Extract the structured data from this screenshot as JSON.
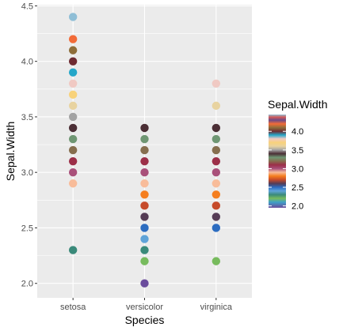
{
  "chart_data": {
    "type": "scatter",
    "title": "",
    "xlabel": "Species",
    "ylabel": "Sepal.Width",
    "categories": [
      "setosa",
      "versicolor",
      "virginica"
    ],
    "ylim": [
      1.87,
      4.51
    ],
    "yticks": [
      2.0,
      2.5,
      3.0,
      3.5,
      4.0,
      4.5
    ],
    "ytick_labels": [
      "2.0",
      "2.5",
      "3.0",
      "3.5",
      "4.0",
      "4.5"
    ],
    "grid": true,
    "panel_background": "#EBEBEB",
    "grid_color": "#FFFFFF",
    "legend": {
      "title": "Sepal.Width",
      "placement": "right",
      "labels": [
        "4.0",
        "3.5",
        "3.0",
        "2.5",
        "2.0"
      ],
      "values": [
        4.0,
        3.5,
        3.0,
        2.5,
        2.0
      ]
    },
    "series": [
      {
        "category": "setosa",
        "points": [
          {
            "y": 4.4,
            "color": "#8FBED6"
          },
          {
            "y": 4.2,
            "color": "#F26B38"
          },
          {
            "y": 4.1,
            "color": "#8E6E3A"
          },
          {
            "y": 4.0,
            "color": "#6E2B32"
          },
          {
            "y": 3.9,
            "color": "#25A7C9"
          },
          {
            "y": 3.8,
            "color": "#F0C9C3"
          },
          {
            "y": 3.7,
            "color": "#F8D27A"
          },
          {
            "y": 3.6,
            "color": "#E8D3A0"
          },
          {
            "y": 3.5,
            "color": "#A3A3A3"
          },
          {
            "y": 3.4,
            "color": "#4B2E35"
          },
          {
            "y": 3.3,
            "color": "#6F9673"
          },
          {
            "y": 3.2,
            "color": "#866E4E"
          },
          {
            "y": 3.1,
            "color": "#9C2F48"
          },
          {
            "y": 3.0,
            "color": "#A9507A"
          },
          {
            "y": 2.9,
            "color": "#F8BC9A"
          },
          {
            "y": 2.3,
            "color": "#3A8A7A"
          }
        ]
      },
      {
        "category": "versicolor",
        "points": [
          {
            "y": 3.4,
            "color": "#4B2E35"
          },
          {
            "y": 3.3,
            "color": "#6F9673"
          },
          {
            "y": 3.2,
            "color": "#866E4E"
          },
          {
            "y": 3.1,
            "color": "#9C2F48"
          },
          {
            "y": 3.0,
            "color": "#A9507A"
          },
          {
            "y": 2.9,
            "color": "#F8BC9A"
          },
          {
            "y": 2.8,
            "color": "#F57E1F"
          },
          {
            "y": 2.7,
            "color": "#C64A2A"
          },
          {
            "y": 2.6,
            "color": "#553C55"
          },
          {
            "y": 2.5,
            "color": "#2C6CC0"
          },
          {
            "y": 2.4,
            "color": "#5FA3D8"
          },
          {
            "y": 2.3,
            "color": "#3A8A7A"
          },
          {
            "y": 2.2,
            "color": "#77BB5D"
          },
          {
            "y": 2.0,
            "color": "#6A4C9C"
          }
        ]
      },
      {
        "category": "virginica",
        "points": [
          {
            "y": 3.8,
            "color": "#F0C9C3"
          },
          {
            "y": 3.6,
            "color": "#E8D3A0"
          },
          {
            "y": 3.4,
            "color": "#4B2E35"
          },
          {
            "y": 3.3,
            "color": "#6F9673"
          },
          {
            "y": 3.2,
            "color": "#866E4E"
          },
          {
            "y": 3.1,
            "color": "#9C2F48"
          },
          {
            "y": 3.0,
            "color": "#A9507A"
          },
          {
            "y": 2.9,
            "color": "#F8BC9A"
          },
          {
            "y": 2.8,
            "color": "#F57E1F"
          },
          {
            "y": 2.7,
            "color": "#C64A2A"
          },
          {
            "y": 2.6,
            "color": "#553C55"
          },
          {
            "y": 2.5,
            "color": "#2C6CC0"
          },
          {
            "y": 2.2,
            "color": "#77BB5D"
          }
        ]
      }
    ],
    "colorbar": {
      "min": 1.95,
      "max": 4.45,
      "stops": [
        {
          "v": 4.45,
          "color": "#8FBED6"
        },
        {
          "v": 4.38,
          "color": "#D35A5A"
        },
        {
          "v": 4.3,
          "color": "#6B4A87"
        },
        {
          "v": 4.2,
          "color": "#F26B38"
        },
        {
          "v": 4.1,
          "color": "#8E6E3A"
        },
        {
          "v": 4.0,
          "color": "#6E2B32"
        },
        {
          "v": 3.9,
          "color": "#25A7C9"
        },
        {
          "v": 3.8,
          "color": "#F0C9C3"
        },
        {
          "v": 3.7,
          "color": "#F8D27A"
        },
        {
          "v": 3.6,
          "color": "#E8D3A0"
        },
        {
          "v": 3.5,
          "color": "#A3A3A3"
        },
        {
          "v": 3.4,
          "color": "#4B2E35"
        },
        {
          "v": 3.3,
          "color": "#6F9673"
        },
        {
          "v": 3.2,
          "color": "#866E4E"
        },
        {
          "v": 3.1,
          "color": "#9C2F48"
        },
        {
          "v": 3.0,
          "color": "#A9507A"
        },
        {
          "v": 2.9,
          "color": "#F8BC9A"
        },
        {
          "v": 2.8,
          "color": "#F57E1F"
        },
        {
          "v": 2.7,
          "color": "#C64A2A"
        },
        {
          "v": 2.6,
          "color": "#553C55"
        },
        {
          "v": 2.5,
          "color": "#2C6CC0"
        },
        {
          "v": 2.4,
          "color": "#5FA3D8"
        },
        {
          "v": 2.3,
          "color": "#3A8A7A"
        },
        {
          "v": 2.2,
          "color": "#77BB5D"
        },
        {
          "v": 2.1,
          "color": "#3FA0C8"
        },
        {
          "v": 1.95,
          "color": "#6A4C9C"
        }
      ]
    }
  }
}
